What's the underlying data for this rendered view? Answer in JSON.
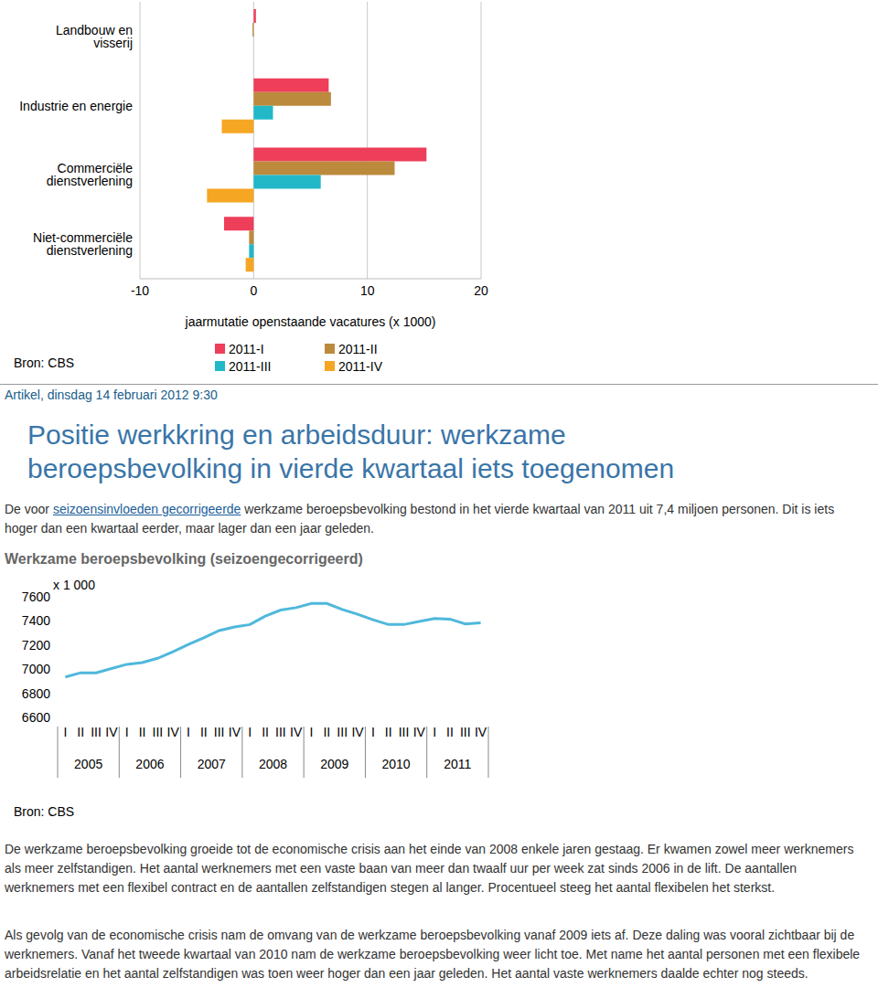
{
  "chart_data": [
    {
      "type": "bar",
      "orientation": "horizontal",
      "categories": [
        "Landbouw en visserij",
        "Industrie en energie",
        "Commerciële dienstverlening",
        "Niet-commerciële dienstverlening"
      ],
      "series": [
        {
          "name": "2011-I",
          "color": "#ee3e5a",
          "values": [
            0.2,
            6.6,
            15.2,
            -2.6
          ]
        },
        {
          "name": "2011-II",
          "color": "#bc8a3c",
          "values": [
            -0.1,
            6.8,
            12.4,
            -0.4
          ]
        },
        {
          "name": "2011-III",
          "color": "#22b8c8",
          "values": [
            0,
            1.7,
            5.9,
            -0.4
          ]
        },
        {
          "name": "2011-IV",
          "color": "#f5a623",
          "values": [
            0,
            -2.8,
            -4.1,
            -0.7
          ]
        }
      ],
      "xlim": [
        -10,
        20
      ],
      "xticks": [
        -10,
        0,
        10,
        20
      ],
      "xlabel": "jaarmutatie openstaande vacatures (x 1000)",
      "grid": true,
      "legend": "bottom",
      "source": "Bron: CBS"
    },
    {
      "type": "line",
      "title": "Werkzame beroepsbevolking (seizoengecorrigeerd)",
      "ylabel": "x 1 000",
      "categories": [
        "I",
        "II",
        "III",
        "IV",
        "I",
        "II",
        "III",
        "IV",
        "I",
        "II",
        "III",
        "IV",
        "I",
        "II",
        "III",
        "IV",
        "I",
        "II",
        "III",
        "IV",
        "I",
        "II",
        "III",
        "IV",
        "I",
        "II",
        "III",
        "IV"
      ],
      "x_groups": [
        "2005",
        "2006",
        "2007",
        "2008",
        "2009",
        "2010",
        "2011"
      ],
      "values": [
        6935,
        6970,
        6970,
        7005,
        7040,
        7055,
        7090,
        7145,
        7205,
        7260,
        7320,
        7350,
        7370,
        7440,
        7490,
        7510,
        7545,
        7545,
        7495,
        7455,
        7410,
        7370,
        7370,
        7395,
        7420,
        7415,
        7375,
        7385
      ],
      "color": "#4fb8dc",
      "ylim": [
        6600,
        7600
      ],
      "yticks": [
        6600,
        6800,
        7000,
        7200,
        7400,
        7600
      ],
      "grid": false,
      "source": "Bron: CBS"
    }
  ],
  "document": {
    "meta": "Artikel, dinsdag 14 februari 2012 9:30",
    "title": "Positie werkkring en arbeidsduur: werkzame beroepsbevolking in vierde kwartaal iets toegenomen",
    "intro": {
      "before": "De voor ",
      "link": "seizoensinvloeden gecorrigeerde",
      "after": " werkzame beroepsbevolking bestond in het vierde kwartaal van 2011 uit 7,4 miljoen personen. Dit is iets hoger dan een kwartaal eerder, maar lager dan een jaar geleden."
    },
    "paragraphs": [
      "De werkzame beroepsbevolking groeide tot de economische crisis aan het einde van 2008 enkele jaren gestaag. Er kwamen zowel meer werknemers als meer zelfstandigen. Het aantal werknemers met een vaste baan van meer dan twaalf uur per week zat sinds 2006 in de lift. De aantallen werknemers met een flexibel contract en de aantallen zelfstandigen stegen al langer. Procentueel steeg het aantal flexibelen het sterkst.",
      "Als gevolg van de economische crisis nam de omvang van de werkzame beroepsbevolking vanaf 2009 iets af. Deze daling was vooral zichtbaar bij de werknemers. Vanaf het tweede kwartaal van 2010 nam de werkzame beroepsbevolking weer licht toe. Met name het aantal personen met een flexibele arbeidsrelatie en het aantal zelfstandigen was toen weer hoger dan een jaar geleden. Het aantal vaste werknemers daalde echter nog steeds."
    ]
  }
}
